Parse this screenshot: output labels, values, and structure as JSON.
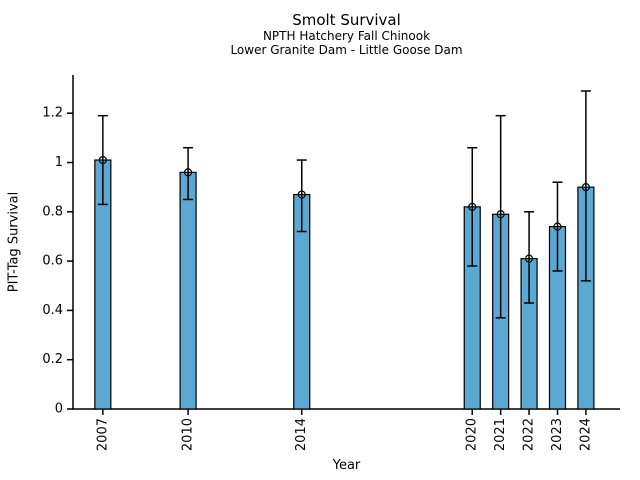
{
  "chart_data": {
    "type": "bar",
    "title": "Smolt Survival",
    "subtitle": [
      "NPTH Hatchery Fall Chinook",
      "Lower Granite Dam - Little Goose Dam"
    ],
    "xlabel": "Year",
    "ylabel": "PIT-Tag Survival",
    "categories": [
      "2007",
      "2010",
      "2014",
      "2020",
      "2021",
      "2022",
      "2023",
      "2024"
    ],
    "x": [
      2007,
      2010,
      2014,
      2020,
      2021,
      2022,
      2023,
      2024
    ],
    "series": [
      {
        "name": "PIT-Tag Survival",
        "values": [
          1.01,
          0.96,
          0.87,
          0.82,
          0.79,
          0.61,
          0.74,
          0.9
        ],
        "error_low": [
          0.83,
          0.85,
          0.72,
          0.58,
          0.37,
          0.43,
          0.56,
          0.52
        ],
        "error_high": [
          1.19,
          1.06,
          1.01,
          1.06,
          1.19,
          0.8,
          0.92,
          1.29
        ]
      }
    ],
    "xlim": [
      2005.95,
      2025.2
    ],
    "ylim": [
      0,
      1.355
    ],
    "yticks": [
      0,
      0.2,
      0.4,
      0.6,
      0.8,
      1,
      1.2
    ],
    "ytick_labels": [
      "0",
      "0.2",
      "0.4",
      "0.6",
      "0.8",
      "1",
      "1.2"
    ],
    "grid": false,
    "legend": null,
    "style": {
      "bar_color": "#5BA8D2",
      "bar_edge_color": "#000000",
      "error_color": "#000000",
      "marker": "open-circle",
      "background": "#FFFFFF",
      "text_color": "#000000"
    }
  }
}
